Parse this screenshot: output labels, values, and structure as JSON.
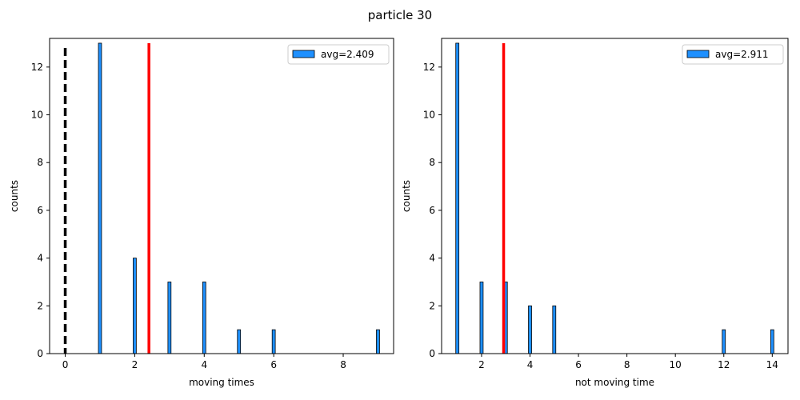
{
  "figure": {
    "title": "particle 30"
  },
  "chart_data": [
    {
      "type": "bar",
      "xlabel": "moving times",
      "ylabel": "counts",
      "xlim": [
        -0.45,
        9.45
      ],
      "ylim": [
        0,
        13.2
      ],
      "xticks": [
        0,
        2,
        4,
        6,
        8
      ],
      "yticks": [
        0,
        2,
        4,
        6,
        8,
        10,
        12
      ],
      "bar_width": 0.09,
      "series": [
        {
          "name": "avg=2.409",
          "x": [
            1,
            2,
            3,
            4,
            5,
            6,
            9
          ],
          "values": [
            13,
            4,
            3,
            3,
            1,
            1,
            1
          ]
        }
      ],
      "average": 2.409,
      "dashed_reference_x": 0,
      "bar_color": "#1e90ff",
      "avg_line_color": "#ff0000",
      "dashed_line_color": "#000000",
      "legend_position": "top-right"
    },
    {
      "type": "bar",
      "xlabel": "not moving time",
      "ylabel": "counts",
      "xlim": [
        0.35,
        14.65
      ],
      "ylim": [
        0,
        13.2
      ],
      "xticks": [
        2,
        4,
        6,
        8,
        10,
        12,
        14
      ],
      "yticks": [
        0,
        2,
        4,
        6,
        8,
        10,
        12
      ],
      "bar_width": 0.13,
      "series": [
        {
          "name": "avg=2.911",
          "x": [
            1,
            2,
            3,
            4,
            5,
            12,
            14
          ],
          "values": [
            13,
            3,
            3,
            2,
            2,
            1,
            1
          ]
        }
      ],
      "average": 2.911,
      "bar_color": "#1e90ff",
      "avg_line_color": "#ff0000",
      "legend_position": "top-right"
    }
  ]
}
